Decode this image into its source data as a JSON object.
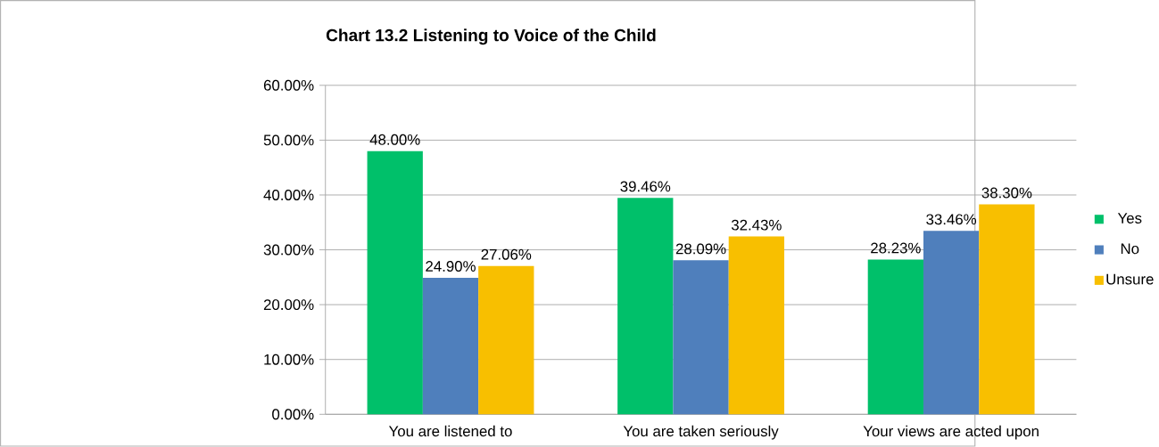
{
  "chart_data": {
    "type": "bar",
    "title": "Chart 13.2 Listening to Voice of the Child",
    "categories": [
      "You are listened to",
      "You are taken seriously",
      "Your views are acted upon"
    ],
    "series": [
      {
        "name": "Yes",
        "color": "#00c06a",
        "values": [
          48.0,
          39.46,
          28.23
        ],
        "value_labels": [
          "48.00%",
          "39.46%",
          "28.23%"
        ]
      },
      {
        "name": "No",
        "color": "#4f7fbc",
        "values": [
          24.9,
          28.09,
          33.46
        ],
        "value_labels": [
          "24.90%",
          "28.09%",
          "33.46%"
        ]
      },
      {
        "name": "Unsure",
        "color": "#f8bf00",
        "values": [
          27.06,
          32.43,
          38.3
        ],
        "value_labels": [
          "27.06%",
          "32.43%",
          "38.30%"
        ]
      }
    ],
    "ylim": [
      0,
      60
    ],
    "yticks": [
      {
        "value": 0,
        "label": "0.00%"
      },
      {
        "value": 10,
        "label": "10.00%"
      },
      {
        "value": 20,
        "label": "20.00%"
      },
      {
        "value": 30,
        "label": "30.00%"
      },
      {
        "value": 40,
        "label": "40.00%"
      },
      {
        "value": 50,
        "label": "50.00%"
      },
      {
        "value": 60,
        "label": "60.00%"
      }
    ],
    "grid": "y",
    "legend": "right"
  }
}
